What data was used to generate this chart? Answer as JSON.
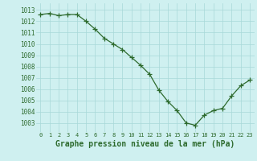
{
  "x": [
    0,
    1,
    2,
    3,
    4,
    5,
    6,
    7,
    8,
    9,
    10,
    11,
    12,
    13,
    14,
    15,
    16,
    17,
    18,
    19,
    20,
    21,
    22,
    23
  ],
  "y": [
    1012.6,
    1012.7,
    1012.5,
    1012.6,
    1012.6,
    1012.0,
    1011.3,
    1010.5,
    1010.0,
    1009.5,
    1008.8,
    1008.1,
    1007.3,
    1005.9,
    1004.9,
    1004.1,
    1003.0,
    1002.8,
    1003.7,
    1004.1,
    1004.3,
    1005.4,
    1006.3,
    1006.8
  ],
  "line_color": "#2d6a2d",
  "marker": "+",
  "marker_size": 4,
  "line_width": 0.9,
  "background_color": "#cff0f0",
  "grid_color": "#a8d8d8",
  "xlabel": "Graphe pression niveau de la mer (hPa)",
  "xlabel_fontsize": 7,
  "ylabel_ticks": [
    1003,
    1004,
    1005,
    1006,
    1007,
    1008,
    1009,
    1010,
    1011,
    1012,
    1013
  ],
  "ylim": [
    1002.2,
    1013.6
  ],
  "xlim": [
    -0.5,
    23.5
  ],
  "ytick_fontsize": 5.5,
  "xtick_fontsize": 5.0,
  "tick_color": "#2d6a2d",
  "axis_label_color": "#2d6a2d",
  "xlabel_fontweight": "bold"
}
